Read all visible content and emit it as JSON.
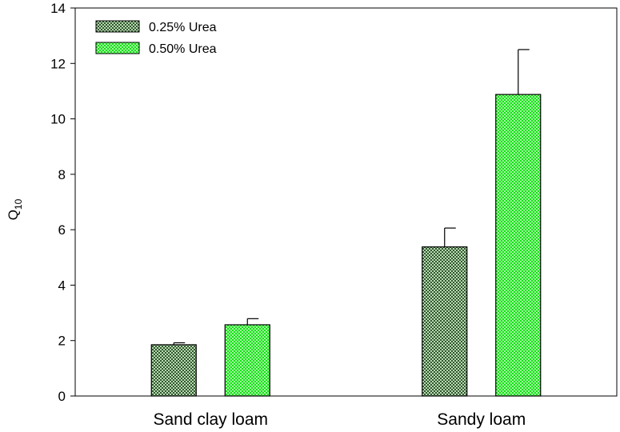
{
  "chart_data": {
    "type": "bar",
    "categories": [
      "Sand clay loam",
      "Sandy loam"
    ],
    "series": [
      {
        "name": "0.25% Urea",
        "values": [
          1.85,
          5.38
        ],
        "errors": [
          0.07,
          0.68
        ],
        "color": "#3d6b3a",
        "pattern": "crosshatch-dark"
      },
      {
        "name": "0.50% Urea",
        "values": [
          2.57,
          10.88
        ],
        "errors": [
          0.22,
          1.62
        ],
        "color": "#22ee22",
        "pattern": "crosshatch-bright"
      }
    ],
    "ylabel_main": "Q",
    "ylabel_sub": "10",
    "xlabel": "",
    "ylim": [
      0,
      14
    ],
    "yticks": [
      "0",
      "2",
      "4",
      "6",
      "8",
      "10",
      "12",
      "14"
    ],
    "grid": false,
    "legend_position": "top-left"
  }
}
